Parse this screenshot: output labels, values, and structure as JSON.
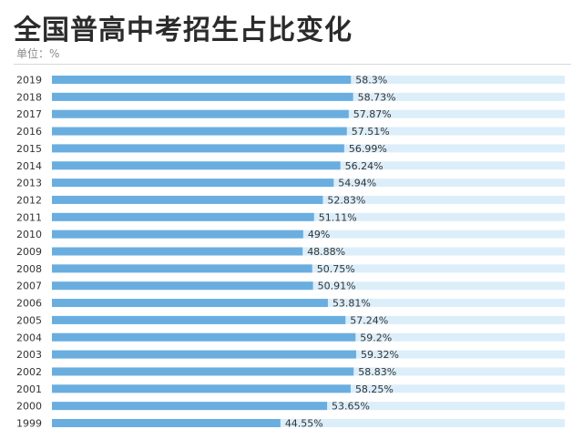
{
  "header": {
    "title": "全国普高中考招生占比变化",
    "unit": "单位：%"
  },
  "chart_data": {
    "type": "bar",
    "orientation": "horizontal",
    "title": "全国普高中考招生占比变化",
    "unit": "%",
    "categories": [
      "2019",
      "2018",
      "2017",
      "2016",
      "2015",
      "2014",
      "2013",
      "2012",
      "2011",
      "2010",
      "2009",
      "2008",
      "2007",
      "2006",
      "2005",
      "2004",
      "2003",
      "2002",
      "2001",
      "2000",
      "1999"
    ],
    "values": [
      58.3,
      58.73,
      57.87,
      57.51,
      56.99,
      56.24,
      54.94,
      52.83,
      51.11,
      49,
      48.88,
      50.75,
      50.91,
      53.81,
      57.24,
      59.2,
      59.32,
      58.83,
      58.25,
      53.65,
      44.55
    ],
    "value_labels": [
      "58.3%",
      "58.73%",
      "57.87%",
      "57.51%",
      "56.99%",
      "56.24%",
      "54.94%",
      "52.83%",
      "51.11%",
      "49%",
      "48.88%",
      "50.75%",
      "50.91%",
      "53.81%",
      "57.24%",
      "59.2%",
      "59.32%",
      "58.83%",
      "58.25%",
      "53.65%",
      "44.55%"
    ],
    "xlim": [
      0,
      100
    ],
    "grid": false,
    "legend": "none",
    "colors": {
      "bar": "#6aaee0",
      "track": "#dceefa",
      "divider": "#d7d7d7"
    }
  }
}
